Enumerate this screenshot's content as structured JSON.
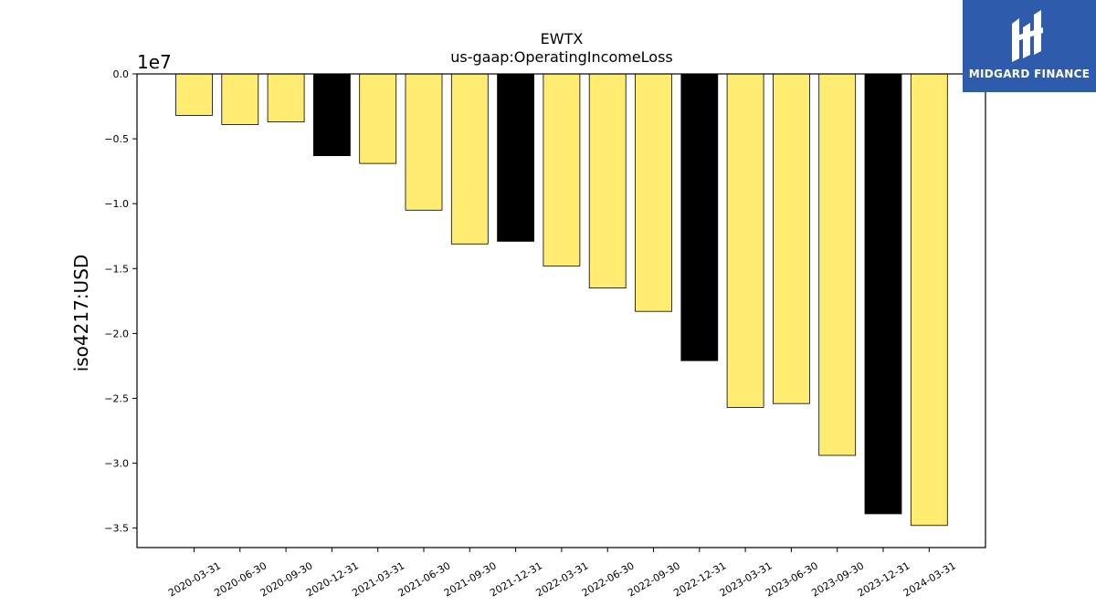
{
  "logo": {
    "text": "MIDGARD FINANCE",
    "icon": "midgard-logo-icon",
    "background": "#2e5bab"
  },
  "chart_data": {
    "type": "bar",
    "title": "EWTX",
    "subtitle": "us-gaap:OperatingIncomeLoss",
    "xlabel": "",
    "ylabel": "iso4217:USD",
    "y_offset_label": "1e7",
    "ylim": [
      -3.65,
      0.0
    ],
    "y_scale_multiplier": 10000000,
    "yticks": [
      0.0,
      -0.5,
      -1.0,
      -1.5,
      -2.0,
      -2.5,
      -3.0,
      -3.5
    ],
    "ytick_labels": [
      "0.0",
      "−0.5",
      "−1.0",
      "−1.5",
      "−2.0",
      "−2.5",
      "−3.0",
      "−3.5"
    ],
    "categories": [
      "2020-03-31",
      "2020-06-30",
      "2020-09-30",
      "2020-12-31",
      "2021-03-31",
      "2021-06-30",
      "2021-09-30",
      "2021-12-31",
      "2022-03-31",
      "2022-06-30",
      "2022-09-30",
      "2022-12-31",
      "2023-03-31",
      "2023-06-30",
      "2023-09-30",
      "2023-12-31",
      "2024-03-31"
    ],
    "values": [
      -0.32,
      -0.39,
      -0.37,
      -0.63,
      -0.69,
      -1.05,
      -1.31,
      -1.29,
      -1.48,
      -1.65,
      -1.83,
      -2.21,
      -2.57,
      -2.54,
      -2.94,
      -3.39,
      -3.48
    ],
    "colors": {
      "quarter": "#ffec70",
      "year_end": "#000000",
      "edge": "#000000"
    },
    "grid": false
  }
}
